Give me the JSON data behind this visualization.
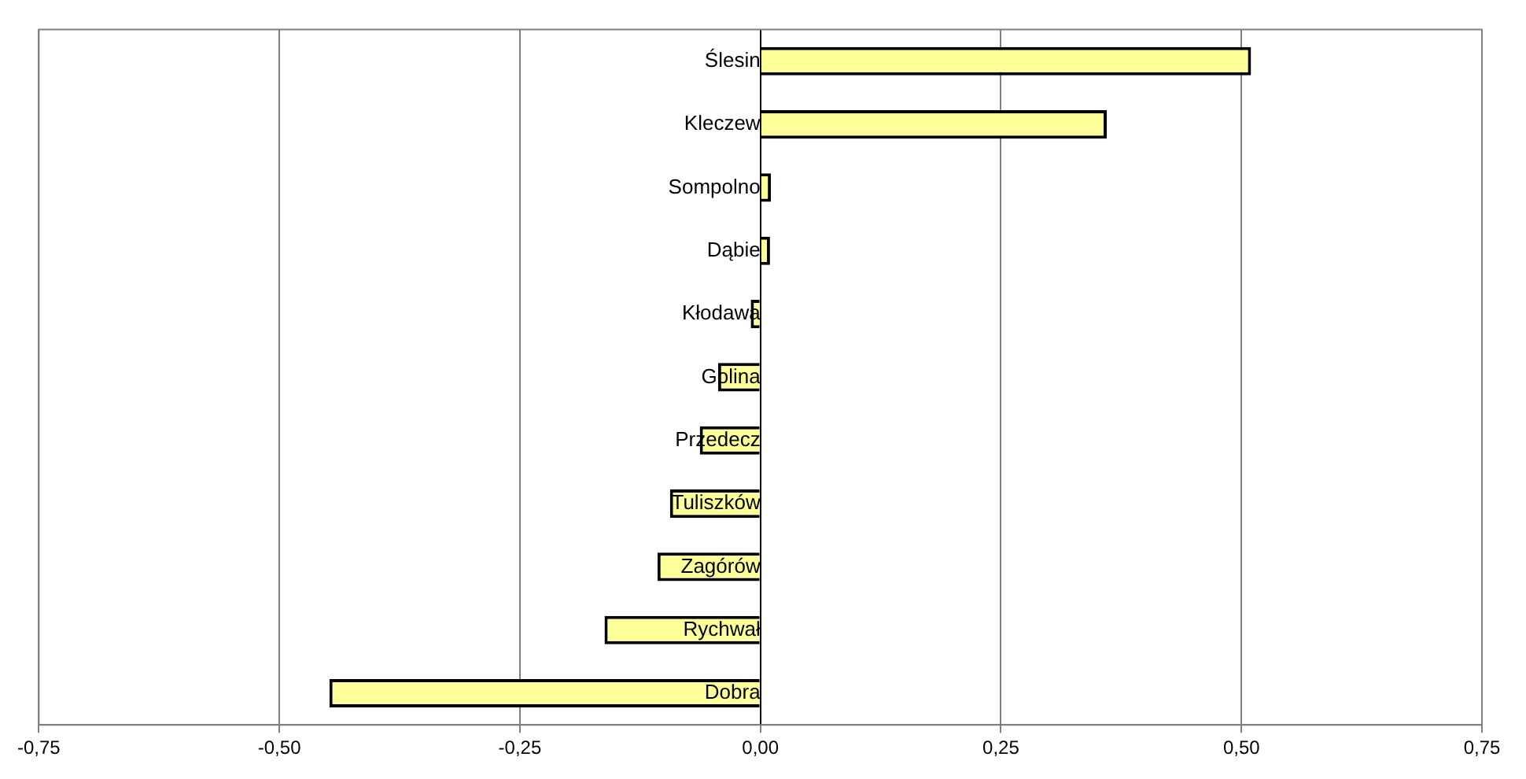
{
  "chart_data": {
    "type": "bar",
    "orientation": "horizontal",
    "categories": [
      "Ślesin",
      "Kleczew",
      "Sompolno",
      "Dąbie",
      "Kłodawa",
      "Golina",
      "Przedecz",
      "Tuliszków",
      "Zagórów",
      "Rychwał",
      "Dobra"
    ],
    "values": [
      0.51,
      0.36,
      0.011,
      0.01,
      -0.01,
      -0.044,
      -0.063,
      -0.094,
      -0.107,
      -0.162,
      -0.448
    ],
    "color": "#ffff99",
    "xlim": [
      -0.75,
      0.75
    ],
    "xticks": [
      {
        "value": -0.75,
        "label": "-0,75"
      },
      {
        "value": -0.5,
        "label": "-0,50"
      },
      {
        "value": -0.25,
        "label": "-0,25"
      },
      {
        "value": 0,
        "label": "0,00"
      },
      {
        "value": 0.25,
        "label": "0,25"
      },
      {
        "value": 0.5,
        "label": "0,50"
      },
      {
        "value": 0.75,
        "label": "0,75"
      }
    ],
    "grid": "x",
    "legend": false
  }
}
